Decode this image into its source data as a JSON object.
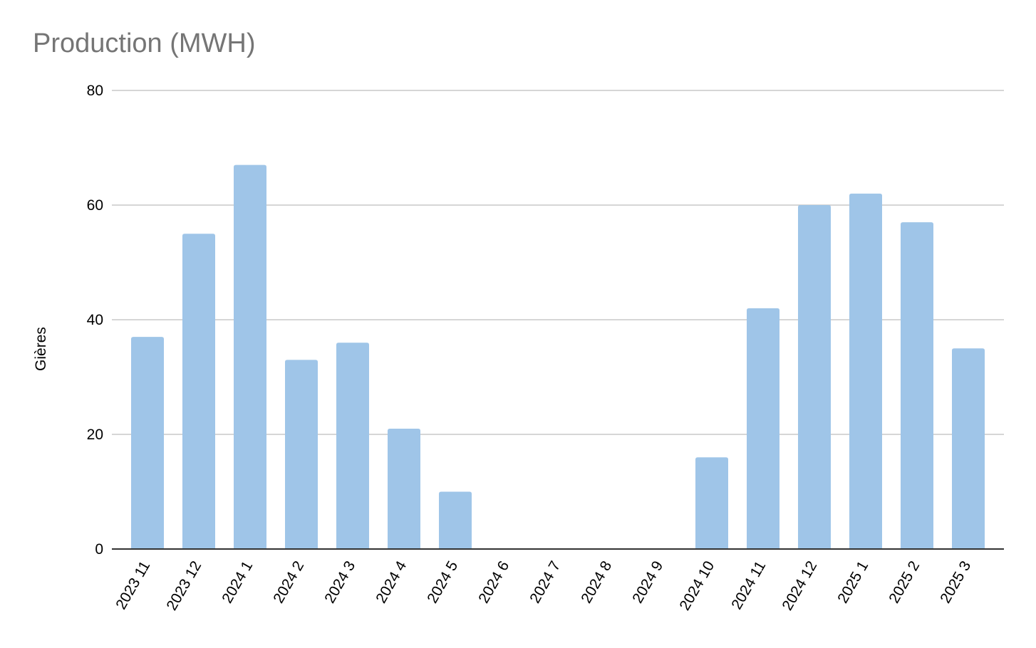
{
  "chart_data": {
    "type": "bar",
    "title": "Production (MWH)",
    "xlabel": "",
    "ylabel": "Gières",
    "ylim": [
      0,
      80
    ],
    "yticks": [
      0,
      20,
      40,
      60,
      80
    ],
    "grid": true,
    "legend": "none",
    "bar_color": "#9fc5e8",
    "categories": [
      "2023 11",
      "2023 12",
      "2024 1",
      "2024 2",
      "2024 3",
      "2024 4",
      "2024 5",
      "2024 6",
      "2024 7",
      "2024 8",
      "2024 9",
      "2024 10",
      "2024 11",
      "2024 12",
      "2025 1",
      "2025 2",
      "2025 3"
    ],
    "values": [
      37,
      55,
      67,
      33,
      36,
      21,
      10,
      0,
      0,
      0,
      0,
      16,
      42,
      60,
      62,
      57,
      35
    ]
  }
}
